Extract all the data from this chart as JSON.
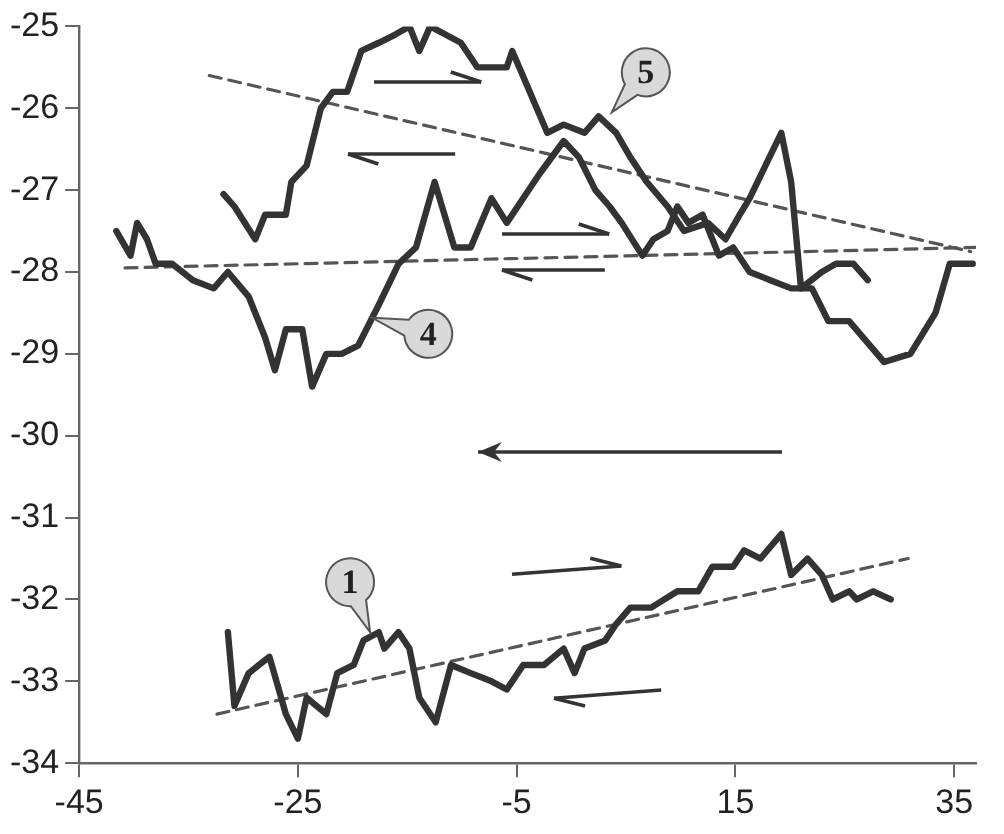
{
  "chart_data": {
    "type": "line",
    "xlim": [
      -45,
      37
    ],
    "xticks": [
      -45,
      -25,
      -5,
      15,
      35
    ],
    "ylim": [
      -34,
      -25
    ],
    "yticks": [
      -34,
      -33,
      -32,
      -31,
      -30,
      -29,
      -28,
      -27,
      -26,
      -25
    ],
    "grid": false,
    "legend": false,
    "marker": "none",
    "line_style": "solid",
    "series": [
      {
        "color": "#333333",
        "x": [
          -41.6,
          -40.3,
          -39.7,
          -38.8,
          -38.0,
          -36.5,
          -34.6,
          -32.7,
          -31.4,
          -29.5,
          -28.0,
          -27.1,
          -26.1,
          -24.6,
          -23.7,
          -22.4,
          -21.0,
          -19.5,
          -17.6,
          -15.8,
          -14.2,
          -12.5,
          -10.7,
          -9.2,
          -7.3,
          -5.9,
          -4.4,
          -2.9,
          -0.7,
          0.7,
          2.2,
          3.5,
          4.6,
          6.5,
          7.5,
          8.8,
          9.7,
          10.7,
          12.0,
          13.5,
          14.8,
          16.3,
          18.2,
          20.1,
          22.0,
          23.5,
          25.4,
          28.6,
          31.0,
          33.3,
          34.6,
          35.8,
          36.7
        ],
        "values": [
          -27.5,
          -27.8,
          -27.4,
          -27.6,
          -27.9,
          -27.9,
          -28.1,
          -28.2,
          -28.0,
          -28.3,
          -28.8,
          -29.2,
          -28.7,
          -28.7,
          -29.4,
          -29.0,
          -29.0,
          -28.9,
          -28.4,
          -27.9,
          -27.7,
          -26.9,
          -27.7,
          -27.7,
          -27.1,
          -27.4,
          -27.1,
          -26.8,
          -26.4,
          -26.6,
          -27.0,
          -27.2,
          -27.4,
          -27.8,
          -27.6,
          -27.5,
          -27.2,
          -27.4,
          -27.3,
          -27.8,
          -27.7,
          -28.0,
          -28.1,
          -28.2,
          -28.2,
          -28.6,
          -28.6,
          -29.1,
          -29.0,
          -28.5,
          -27.9,
          -27.9,
          -27.9
        ]
      },
      {
        "color": "#333333",
        "x": [
          -31.8,
          -30.8,
          -28.9,
          -28.0,
          -26.1,
          -25.6,
          -24.2,
          -22.9,
          -21.8,
          -20.5,
          -19.2,
          -17.6,
          -16.1,
          -14.8,
          -13.9,
          -12.9,
          -10.1,
          -8.6,
          -5.9,
          -5.4,
          -2.2,
          -0.7,
          1.2,
          2.5,
          4.1,
          5.4,
          6.9,
          8.8,
          10.3,
          12.5,
          14.1,
          15.4,
          16.3,
          19.2,
          20.1,
          21.0,
          22.9,
          24.2,
          25.8,
          27.1
        ],
        "values": [
          -27.05,
          -27.2,
          -27.6,
          -27.3,
          -27.3,
          -26.9,
          -26.7,
          -26.0,
          -25.8,
          -25.8,
          -25.3,
          -25.2,
          -25.1,
          -25.0,
          -25.3,
          -25.0,
          -25.2,
          -25.5,
          -25.5,
          -25.3,
          -26.3,
          -26.2,
          -26.3,
          -26.1,
          -26.3,
          -26.6,
          -26.9,
          -27.2,
          -27.5,
          -27.4,
          -27.6,
          -27.3,
          -27.1,
          -26.3,
          -26.9,
          -28.2,
          -28.0,
          -27.9,
          -27.9,
          -28.1
        ]
      },
      {
        "color": "#333333",
        "x": [
          -31.4,
          -30.8,
          -29.5,
          -27.6,
          -26.1,
          -25.0,
          -24.2,
          -22.4,
          -21.4,
          -19.9,
          -19.0,
          -17.6,
          -17.1,
          -15.8,
          -14.8,
          -13.9,
          -12.4,
          -11.0,
          -9.2,
          -7.3,
          -5.9,
          -4.4,
          -2.5,
          -0.7,
          0.3,
          1.2,
          3.1,
          4.1,
          5.4,
          7.3,
          9.7,
          11.6,
          12.9,
          14.8,
          15.8,
          17.3,
          19.2,
          20.1,
          21.6,
          22.9,
          23.9,
          25.4,
          26.1,
          27.6,
          29.2
        ],
        "values": [
          -32.4,
          -33.3,
          -32.9,
          -32.7,
          -33.4,
          -33.7,
          -33.2,
          -33.4,
          -32.9,
          -32.8,
          -32.5,
          -32.4,
          -32.6,
          -32.4,
          -32.6,
          -33.2,
          -33.5,
          -32.8,
          -32.9,
          -33.0,
          -33.1,
          -32.8,
          -32.8,
          -32.6,
          -32.9,
          -32.6,
          -32.5,
          -32.3,
          -32.1,
          -32.1,
          -31.9,
          -31.9,
          -31.6,
          -31.6,
          -31.4,
          -31.5,
          -31.2,
          -31.7,
          -31.5,
          -31.7,
          -32.0,
          -31.9,
          -32.0,
          -31.9,
          -32.0
        ]
      },
      {
        "type": "line",
        "line_style": "dashed",
        "color": "#555555",
        "x": [
          -33.1,
          36.5
        ],
        "values": [
          -25.6,
          -27.75
        ]
      },
      {
        "type": "line",
        "line_style": "dashed",
        "color": "#555555",
        "x": [
          -40.8,
          37
        ],
        "values": [
          -27.95,
          -27.7
        ]
      },
      {
        "type": "line",
        "line_style": "dashed",
        "color": "#555555",
        "x": [
          -32.4,
          30.8
        ],
        "values": [
          -33.4,
          -31.5
        ]
      }
    ],
    "annotations": [
      {
        "text": "5",
        "x": 3.7,
        "y": -26.05
      },
      {
        "text": "4",
        "x": -18.2,
        "y": -28.56
      },
      {
        "text": "1",
        "x": -18.4,
        "y": -32.4
      }
    ]
  }
}
